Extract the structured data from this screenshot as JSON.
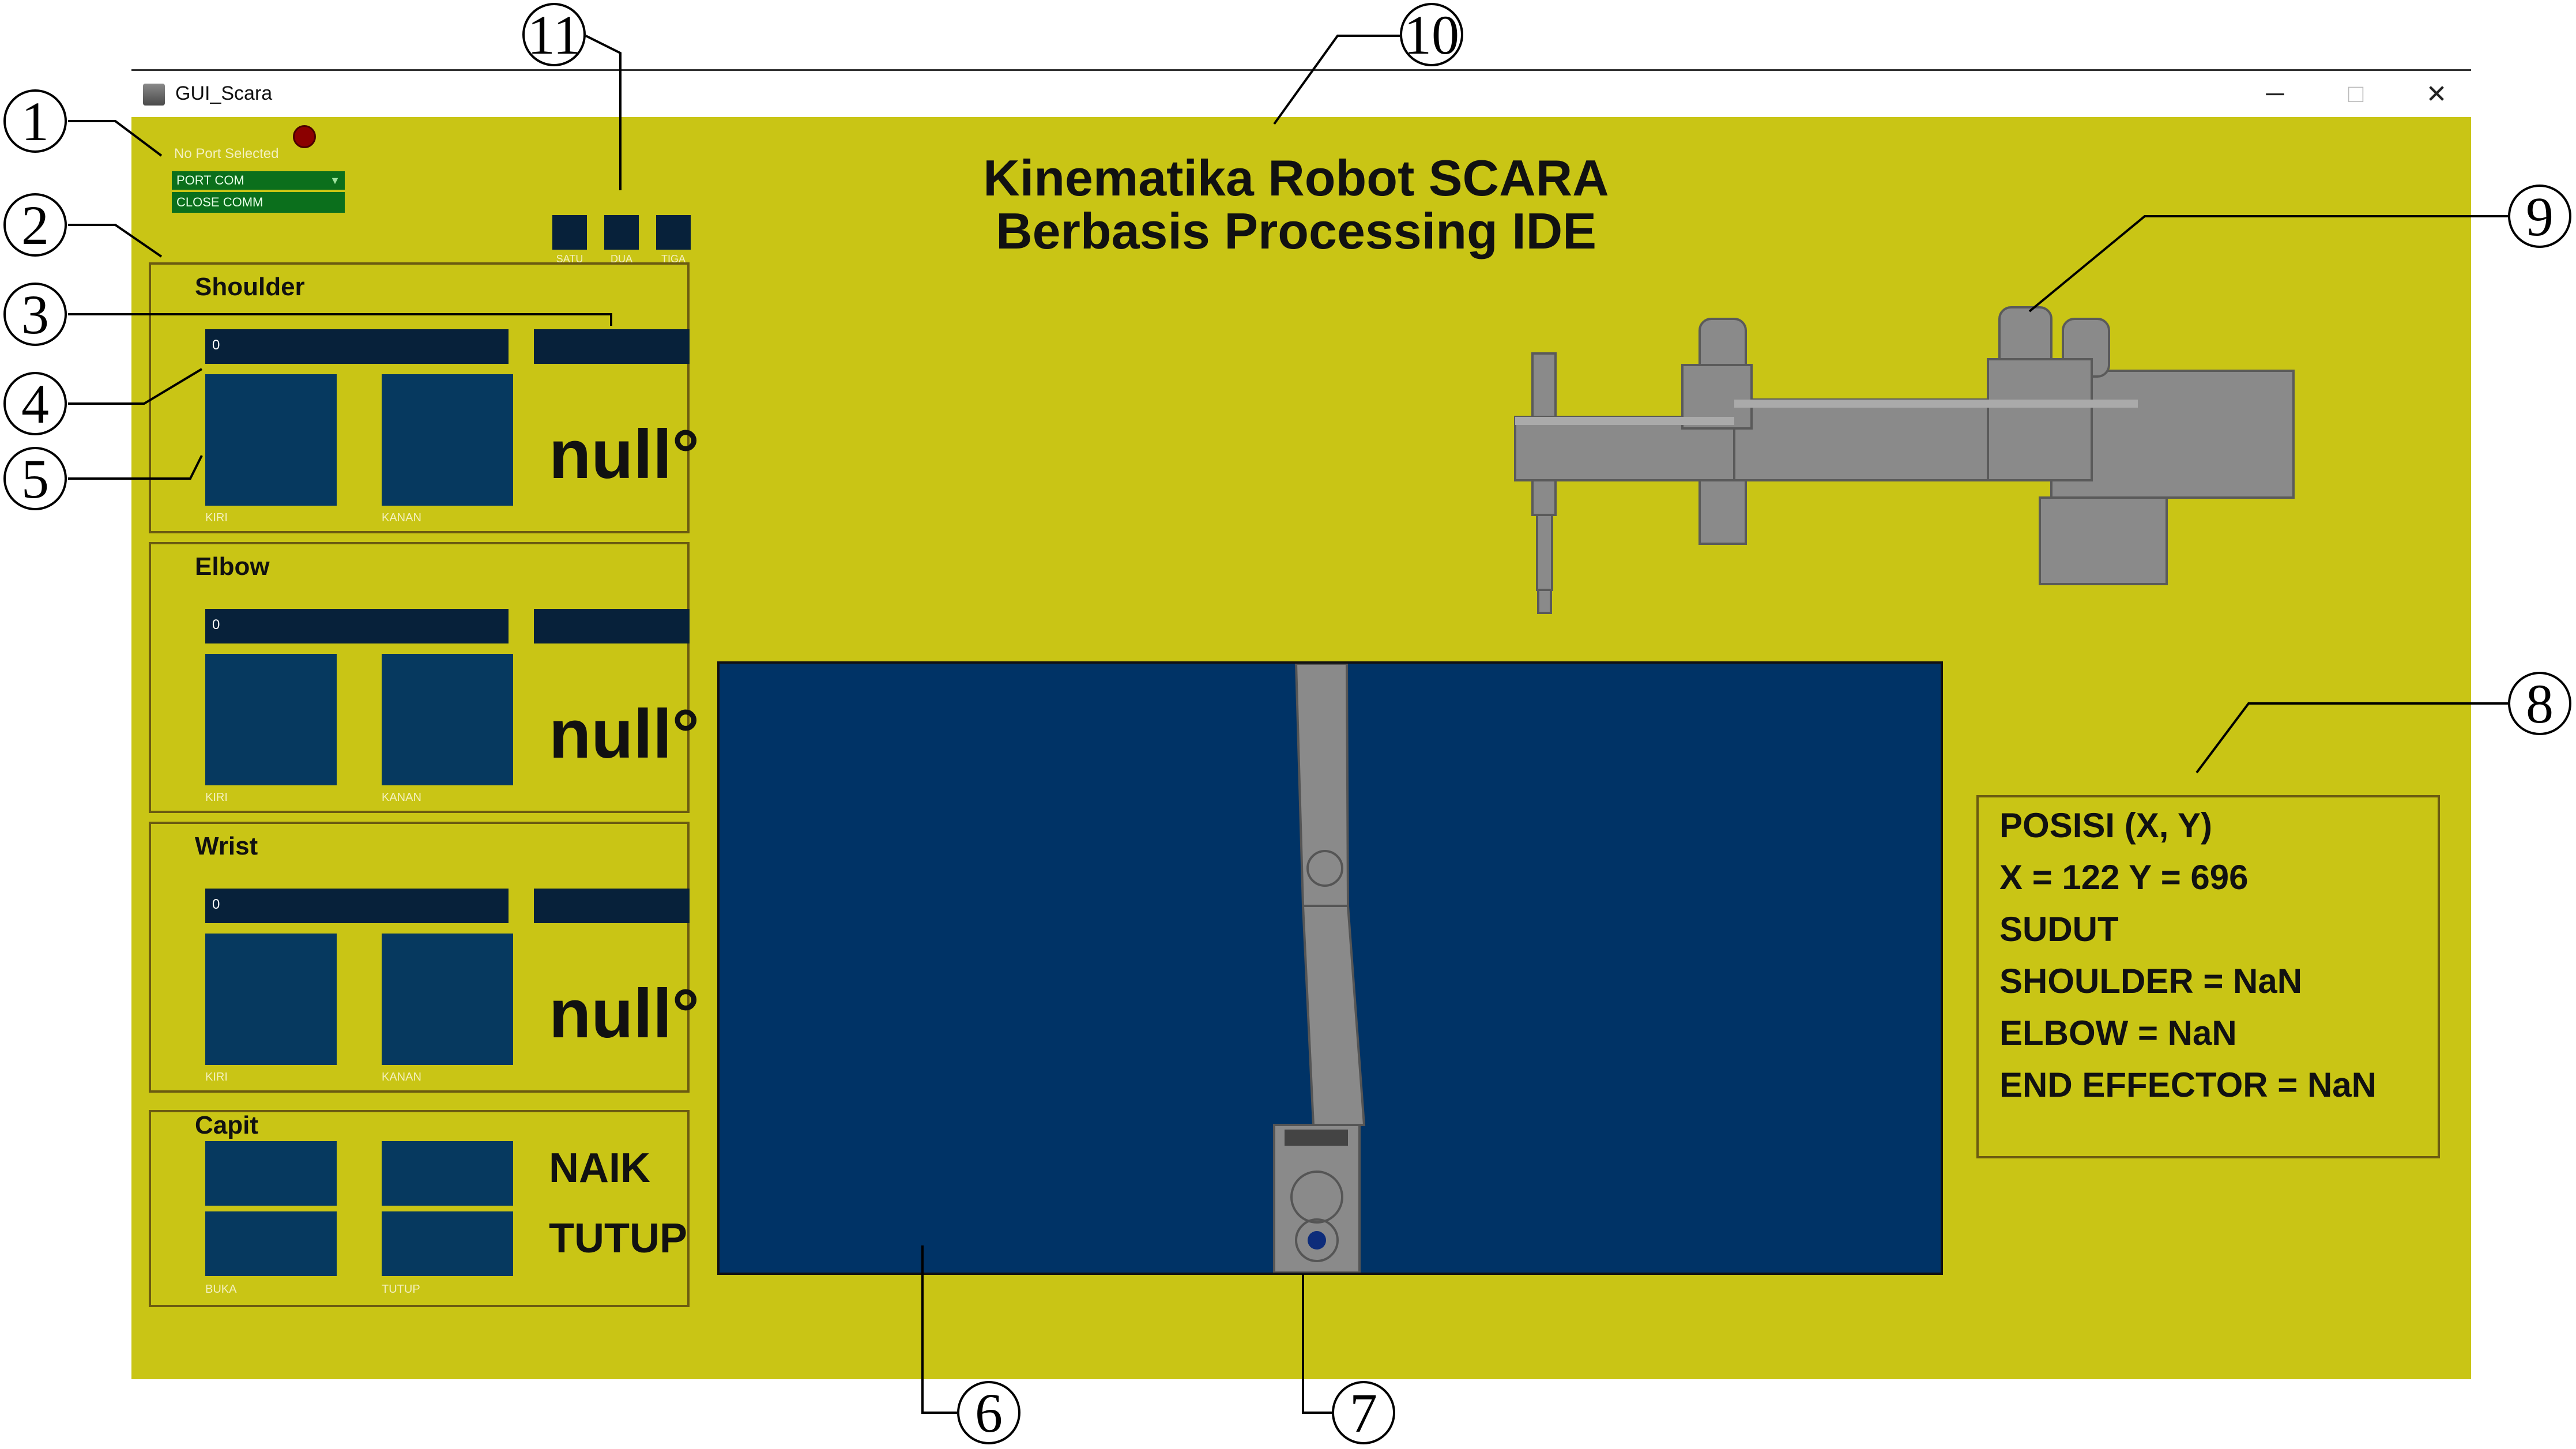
{
  "window": {
    "title": "GUI_Scara",
    "min": "─",
    "max": "□",
    "close": "✕"
  },
  "serial": {
    "status": "No Port Selected",
    "port_combo": "PORT COM",
    "close_button": "CLOSE COMM"
  },
  "modes": [
    {
      "label": "SATU"
    },
    {
      "label": "DUA"
    },
    {
      "label": "TIGA"
    }
  ],
  "header": {
    "line1": "Kinematika Robot SCARA",
    "line2": "Berbasis Processing IDE"
  },
  "joints": [
    {
      "title": "Shoulder",
      "slider_value": "0",
      "angle": "null°",
      "left_label": "KIRI",
      "right_label": "KANAN"
    },
    {
      "title": "Elbow",
      "slider_value": "0",
      "angle": "null°",
      "left_label": "KIRI",
      "right_label": "KANAN"
    },
    {
      "title": "Wrist",
      "slider_value": "0",
      "angle": "null°",
      "left_label": "KIRI",
      "right_label": "KANAN"
    }
  ],
  "capit": {
    "title": "Capit",
    "state1": "NAIK",
    "state2": "TUTUP",
    "left_label": "BUKA",
    "right_label": "TUTUP"
  },
  "info": {
    "line1": "POSISI (X, Y)",
    "line2": "X = 122 Y = 696",
    "line3": "SUDUT",
    "line4": "SHOULDER = NaN",
    "line5": "ELBOW = NaN",
    "line6": "END EFFECTOR = NaN"
  },
  "callouts": [
    "1",
    "2",
    "3",
    "4",
    "5",
    "6",
    "7",
    "8",
    "9",
    "10",
    "11"
  ],
  "colors": {
    "canvas": "#c9c515",
    "control": "#07213a",
    "button": "#06395f",
    "workspace": "#003366",
    "green": "#0b6f1c"
  }
}
